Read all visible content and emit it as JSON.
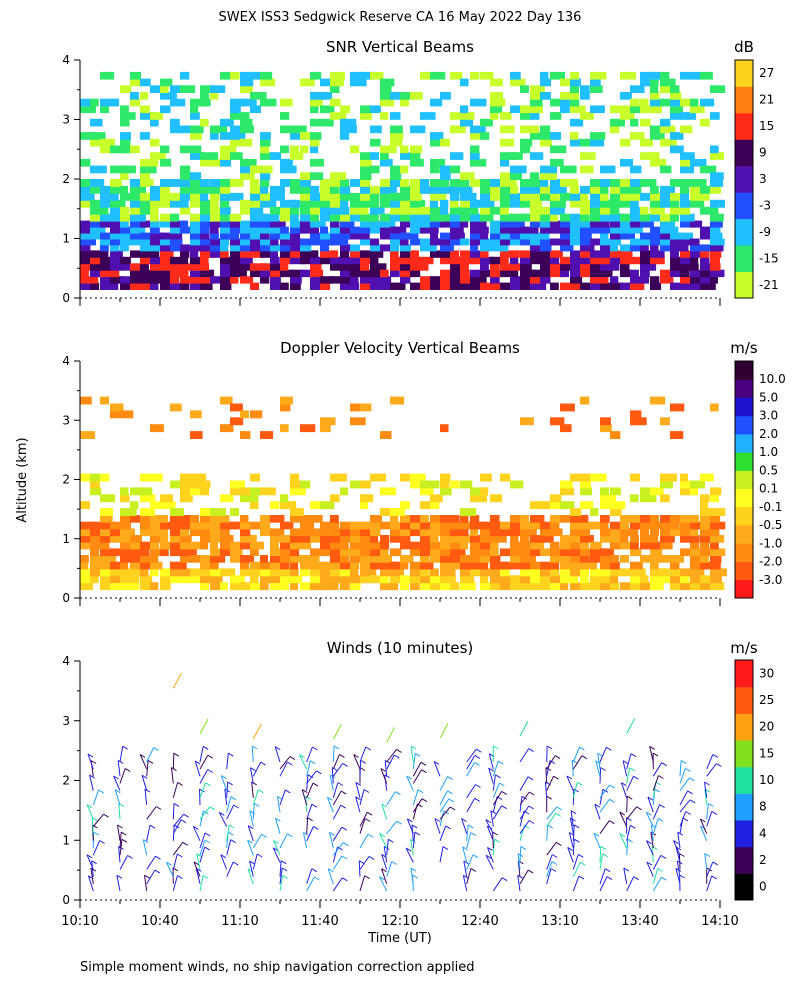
{
  "title": "SWEX ISS3 Sedgwick Reserve CA  16 May 2022 Day 136",
  "footnote": "Simple moment winds, no ship navigation correction applied",
  "shared_ylabel": "Altitude (km)",
  "shared_xlabel": "Time (UT)",
  "chart_data": [
    {
      "type": "heatmap",
      "title": "SNR Vertical Beams",
      "colorbar_unit": "dB",
      "colorbar_labels": [
        "-21",
        "-15",
        "-9",
        "-3",
        "3",
        "9",
        "15",
        "21",
        "27"
      ],
      "colorbar_colors": [
        "#c8ff2a",
        "#2ee86a",
        "#20c0ff",
        "#2050ff",
        "#5010b0",
        "#3c0058",
        "#ff2a1a",
        "#ff8010",
        "#ffd21e"
      ],
      "ylim": [
        0,
        4
      ],
      "yticks": [
        "0",
        "1",
        "2",
        "3",
        "4"
      ],
      "xlim_minutes": [
        610,
        850
      ],
      "layers": [
        {
          "alt_range_km": [
            0.15,
            0.8
          ],
          "level": "9",
          "note": "strong returns"
        },
        {
          "alt_range_km": [
            0.8,
            1.3
          ],
          "level": "-3"
        },
        {
          "alt_range_km": [
            1.3,
            2.0
          ],
          "level": "-15"
        },
        {
          "alt_range_km": [
            2.0,
            3.8
          ],
          "level": "-15",
          "coverage": "sparse"
        }
      ]
    },
    {
      "type": "heatmap",
      "title": "Doppler Velocity Vertical Beams",
      "colorbar_unit": "m/s",
      "colorbar_labels": [
        "-3.0",
        "-2.0",
        "-1.0",
        "-0.5",
        "-0.1",
        "0.1",
        "0.5",
        "1.0",
        "2.0",
        "3.0",
        "5.0",
        "10.0"
      ],
      "colorbar_colors": [
        "#ff1a1a",
        "#ff5a10",
        "#ff8c10",
        "#ffaa1a",
        "#ffd21e",
        "#ffff20",
        "#c8f020",
        "#30e030",
        "#20b0ff",
        "#2050ff",
        "#2010d0",
        "#480080",
        "#300030"
      ],
      "ylim": [
        0,
        4
      ],
      "yticks": [
        "0",
        "1",
        "2",
        "3",
        "4"
      ],
      "xlim_minutes": [
        610,
        850
      ],
      "layers": [
        {
          "alt_range_km": [
            0.15,
            0.5
          ],
          "level": "-0.1"
        },
        {
          "alt_range_km": [
            0.5,
            1.4
          ],
          "level": "-1.0"
        },
        {
          "alt_range_km": [
            1.4,
            2.1
          ],
          "level": "0.1",
          "coverage": "sparse"
        },
        {
          "alt_range_km": [
            2.7,
            3.4
          ],
          "level": "-1.0",
          "coverage": "isolated"
        }
      ]
    },
    {
      "type": "scatter",
      "title": "Winds (10 minutes)",
      "colorbar_unit": "m/s",
      "colorbar_labels": [
        "0",
        "2",
        "4",
        "8",
        "10",
        "15",
        "20",
        "25",
        "30"
      ],
      "colorbar_colors": [
        "#000000",
        "#3c0058",
        "#2020e0",
        "#20a0ff",
        "#20e0a0",
        "#80e020",
        "#ffa010",
        "#ff5a10",
        "#ff1a1a"
      ],
      "ylim": [
        0,
        4
      ],
      "yticks": [
        "0",
        "1",
        "2",
        "3",
        "4"
      ],
      "xlim_minutes": [
        610,
        850
      ],
      "xticks": [
        "10:10",
        "10:40",
        "11:10",
        "11:40",
        "12:10",
        "12:40",
        "13:10",
        "13:40",
        "14:10"
      ],
      "profile_interval_minutes": 10,
      "note": "wind barbs; mostly 2-10 m/s below 2.5 km, isolated 15-25 m/s above 2.5 km"
    }
  ]
}
